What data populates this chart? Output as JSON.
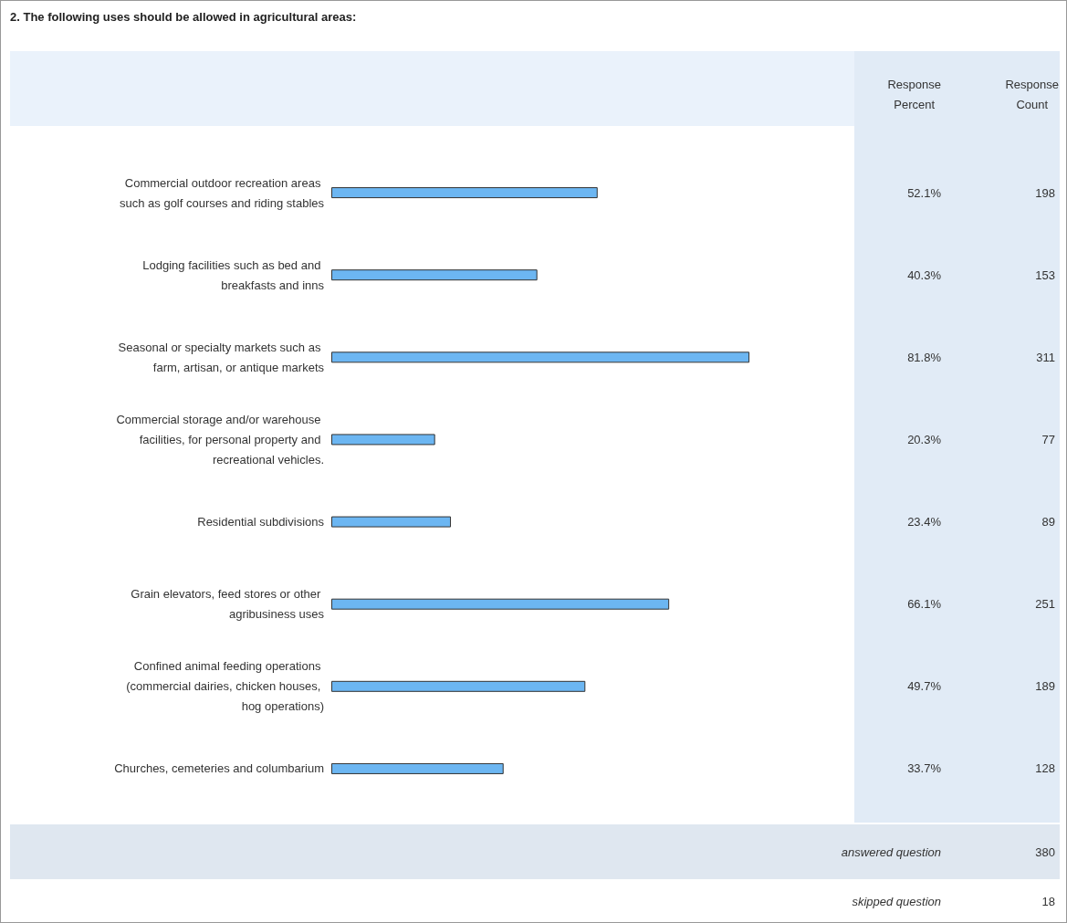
{
  "chart_data": {
    "type": "bar",
    "orientation": "horizontal",
    "title": "2. The following uses should be allowed in agricultural areas:",
    "categories": [
      "Commercial outdoor recreation areas such as golf courses and riding stables",
      "Lodging facilities such as bed and breakfasts and inns",
      "Seasonal or specialty markets such as farm, artisan, or antique markets",
      "Commercial storage and/or warehouse facilities, for personal property and recreational vehicles.",
      "Residential subdivisions",
      "Grain elevators, feed stores or other agribusiness uses",
      "Confined animal feeding operations (commercial dairies, chicken houses, hog operations)",
      "Churches, cemeteries and columbarium"
    ],
    "values": [
      52.1,
      40.3,
      81.8,
      20.3,
      23.4,
      66.1,
      49.7,
      33.7
    ],
    "value_labels": [
      "52.1%",
      "40.3%",
      "81.8%",
      "20.3%",
      "23.4%",
      "66.1%",
      "49.7%",
      "33.7%"
    ],
    "color": "#6cb6f2",
    "tick_labels": "y",
    "annotations": [
      "Response Percent",
      "Response Count",
      "198",
      "153",
      "311",
      "77",
      "89",
      "251",
      "189",
      "128",
      "answered question",
      "380",
      "skipped question",
      "18"
    ]
  }
}
